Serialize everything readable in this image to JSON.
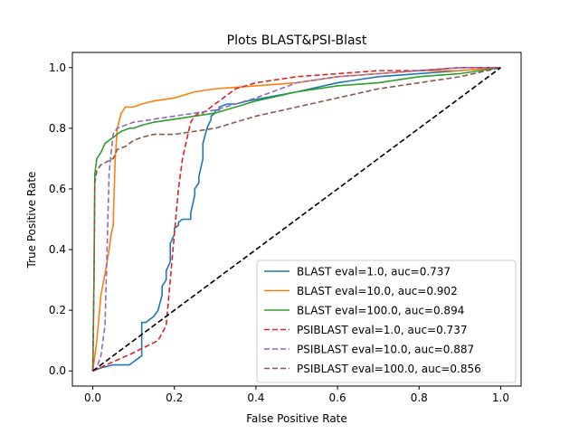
{
  "chart_data": {
    "type": "line",
    "title": "Plots BLAST&PSI-Blast",
    "xlabel": "False Positive Rate",
    "ylabel": "True Positive Rate",
    "xlim": [
      -0.05,
      1.05
    ],
    "ylim": [
      -0.05,
      1.05
    ],
    "xticks": [
      "0.0",
      "0.2",
      "0.4",
      "0.6",
      "0.8",
      "1.0"
    ],
    "yticks": [
      "0.0",
      "0.2",
      "0.4",
      "0.6",
      "0.8",
      "1.0"
    ],
    "grid": false,
    "legend_position": "lower-right",
    "reference_line": {
      "x": [
        0,
        1
      ],
      "y": [
        0,
        1
      ],
      "color": "#000000",
      "dash": true
    },
    "series": [
      {
        "name": "BLAST eval=1.0, auc=0.737",
        "color": "#1f77b4",
        "dash": false,
        "x": [
          0.0,
          0.02,
          0.05,
          0.08,
          0.09,
          0.1,
          0.11,
          0.12,
          0.12,
          0.13,
          0.14,
          0.15,
          0.16,
          0.17,
          0.17,
          0.18,
          0.18,
          0.19,
          0.19,
          0.2,
          0.2,
          0.21,
          0.21,
          0.22,
          0.24,
          0.24,
          0.25,
          0.25,
          0.26,
          0.26,
          0.27,
          0.27,
          0.28,
          0.29,
          0.29,
          0.3,
          0.3,
          0.31,
          0.31,
          0.33,
          0.35,
          0.38,
          0.42,
          0.5,
          0.6,
          0.7,
          0.8,
          0.9,
          1.0
        ],
        "y": [
          0.0,
          0.01,
          0.02,
          0.02,
          0.02,
          0.03,
          0.04,
          0.05,
          0.16,
          0.16,
          0.17,
          0.18,
          0.2,
          0.25,
          0.28,
          0.3,
          0.33,
          0.36,
          0.42,
          0.45,
          0.47,
          0.48,
          0.49,
          0.5,
          0.5,
          0.52,
          0.58,
          0.6,
          0.62,
          0.64,
          0.7,
          0.75,
          0.8,
          0.83,
          0.84,
          0.85,
          0.86,
          0.86,
          0.87,
          0.88,
          0.88,
          0.89,
          0.9,
          0.92,
          0.95,
          0.97,
          0.98,
          0.99,
          1.0
        ]
      },
      {
        "name": "BLAST eval=10.0, auc=0.902",
        "color": "#ff7f0e",
        "dash": false,
        "x": [
          0.0,
          0.01,
          0.02,
          0.03,
          0.035,
          0.04,
          0.045,
          0.05,
          0.055,
          0.06,
          0.07,
          0.08,
          0.1,
          0.12,
          0.15,
          0.2,
          0.25,
          0.3,
          0.4,
          0.5,
          0.6,
          0.7,
          0.8,
          0.9,
          1.0
        ],
        "y": [
          0.0,
          0.1,
          0.25,
          0.32,
          0.36,
          0.4,
          0.45,
          0.48,
          0.7,
          0.8,
          0.85,
          0.87,
          0.87,
          0.88,
          0.89,
          0.9,
          0.92,
          0.93,
          0.94,
          0.95,
          0.97,
          0.98,
          0.99,
          0.99,
          1.0
        ]
      },
      {
        "name": "BLAST eval=100.0, auc=0.894",
        "color": "#2ca02c",
        "dash": false,
        "x": [
          0.0,
          0.003,
          0.005,
          0.01,
          0.02,
          0.03,
          0.05,
          0.07,
          0.09,
          0.1,
          0.12,
          0.15,
          0.2,
          0.25,
          0.3,
          0.35,
          0.4,
          0.5,
          0.6,
          0.7,
          0.8,
          0.9,
          0.95,
          1.0
        ],
        "y": [
          0.0,
          0.3,
          0.65,
          0.7,
          0.72,
          0.75,
          0.77,
          0.79,
          0.8,
          0.8,
          0.81,
          0.82,
          0.83,
          0.84,
          0.85,
          0.87,
          0.89,
          0.92,
          0.94,
          0.95,
          0.97,
          0.98,
          0.99,
          1.0
        ]
      },
      {
        "name": "PSIBLAST eval=1.0, auc=0.737",
        "color": "#d62728",
        "dash": true,
        "x": [
          0.0,
          0.05,
          0.1,
          0.13,
          0.16,
          0.18,
          0.19,
          0.2,
          0.21,
          0.22,
          0.23,
          0.24,
          0.25,
          0.26,
          0.27,
          0.28,
          0.3,
          0.32,
          0.35,
          0.4,
          0.5,
          0.6,
          0.7,
          0.8,
          0.9,
          1.0
        ],
        "y": [
          0.0,
          0.03,
          0.06,
          0.08,
          0.1,
          0.15,
          0.3,
          0.45,
          0.6,
          0.7,
          0.76,
          0.82,
          0.84,
          0.85,
          0.85,
          0.86,
          0.88,
          0.9,
          0.93,
          0.95,
          0.97,
          0.98,
          0.99,
          0.99,
          1.0,
          1.0
        ]
      },
      {
        "name": "PSIBLAST eval=10.0, auc=0.887",
        "color": "#9467bd",
        "dash": true,
        "x": [
          0.0,
          0.01,
          0.02,
          0.03,
          0.035,
          0.04,
          0.045,
          0.05,
          0.06,
          0.08,
          0.1,
          0.15,
          0.2,
          0.25,
          0.3,
          0.4,
          0.5,
          0.6,
          0.7,
          0.8,
          0.9,
          1.0
        ],
        "y": [
          0.0,
          0.01,
          0.05,
          0.15,
          0.4,
          0.65,
          0.72,
          0.78,
          0.8,
          0.81,
          0.82,
          0.83,
          0.84,
          0.85,
          0.86,
          0.9,
          0.95,
          0.97,
          0.98,
          0.99,
          1.0,
          1.0
        ]
      },
      {
        "name": "PSIBLAST eval=100.0, auc=0.856",
        "color": "#8c564b",
        "dash": true,
        "x": [
          0.0,
          0.003,
          0.005,
          0.01,
          0.02,
          0.05,
          0.06,
          0.08,
          0.1,
          0.12,
          0.15,
          0.2,
          0.3,
          0.35,
          0.4,
          0.5,
          0.6,
          0.7,
          0.8,
          0.9,
          1.0
        ],
        "y": [
          0.0,
          0.3,
          0.62,
          0.66,
          0.68,
          0.7,
          0.73,
          0.74,
          0.76,
          0.77,
          0.78,
          0.78,
          0.8,
          0.82,
          0.84,
          0.87,
          0.9,
          0.93,
          0.95,
          0.97,
          1.0
        ]
      }
    ]
  }
}
